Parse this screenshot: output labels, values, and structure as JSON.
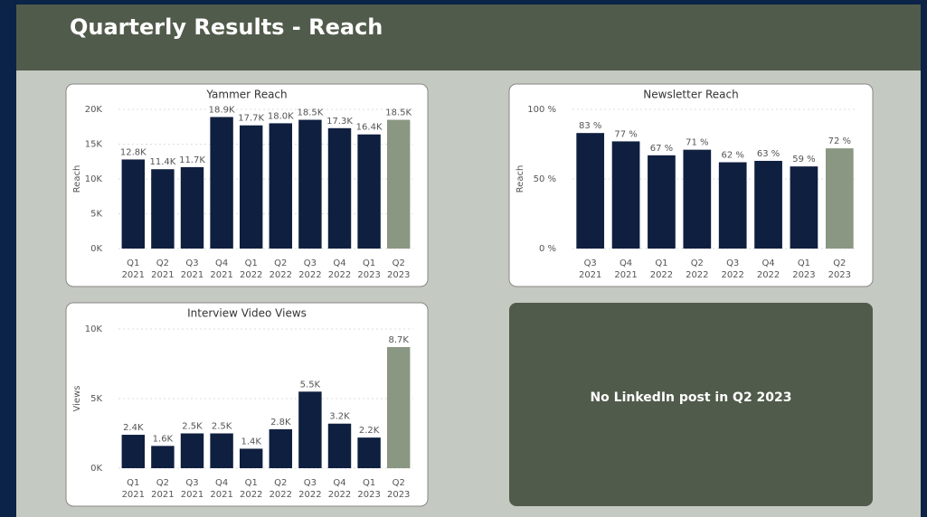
{
  "title": "Quarterly Results - Reach",
  "note": "No LinkedIn post in Q2 2023",
  "chart_data": [
    {
      "type": "bar",
      "title": "Yammer Reach",
      "ylabel": "Reach",
      "categories": [
        [
          "Q1",
          "2021"
        ],
        [
          "Q2",
          "2021"
        ],
        [
          "Q3",
          "2021"
        ],
        [
          "Q4",
          "2021"
        ],
        [
          "Q1",
          "2022"
        ],
        [
          "Q2",
          "2022"
        ],
        [
          "Q3",
          "2022"
        ],
        [
          "Q4",
          "2022"
        ],
        [
          "Q1",
          "2023"
        ],
        [
          "Q2",
          "2023"
        ]
      ],
      "values": [
        12800,
        11400,
        11700,
        18900,
        17700,
        18000,
        18500,
        17300,
        16400,
        18500
      ],
      "value_labels": [
        "12.8K",
        "11.4K",
        "11.7K",
        "18.9K",
        "17.7K",
        "18.0K",
        "18.5K",
        "17.3K",
        "16.4K",
        "18.5K"
      ],
      "colors": [
        "#0f1f3f",
        "#0f1f3f",
        "#0f1f3f",
        "#0f1f3f",
        "#0f1f3f",
        "#0f1f3f",
        "#0f1f3f",
        "#0f1f3f",
        "#0f1f3f",
        "#8a9782"
      ],
      "ylim": [
        0,
        20000
      ],
      "yticks": [
        {
          "value": 0,
          "label": "0K"
        },
        {
          "value": 5000,
          "label": "5K"
        },
        {
          "value": 10000,
          "label": "10K"
        },
        {
          "value": 15000,
          "label": "15K"
        },
        {
          "value": 20000,
          "label": "20K"
        }
      ],
      "grid": true
    },
    {
      "type": "bar",
      "title": "Newsletter Reach",
      "ylabel": "Reach",
      "categories": [
        [
          "Q3",
          "2021"
        ],
        [
          "Q4",
          "2021"
        ],
        [
          "Q1",
          "2022"
        ],
        [
          "Q2",
          "2022"
        ],
        [
          "Q3",
          "2022"
        ],
        [
          "Q4",
          "2022"
        ],
        [
          "Q1",
          "2023"
        ],
        [
          "Q2",
          "2023"
        ]
      ],
      "values": [
        83,
        77,
        67,
        71,
        62,
        63,
        59,
        72
      ],
      "value_labels": [
        "83 %",
        "77 %",
        "67 %",
        "71 %",
        "62 %",
        "63 %",
        "59 %",
        "72 %"
      ],
      "colors": [
        "#0f1f3f",
        "#0f1f3f",
        "#0f1f3f",
        "#0f1f3f",
        "#0f1f3f",
        "#0f1f3f",
        "#0f1f3f",
        "#8a9782"
      ],
      "ylim": [
        0,
        100
      ],
      "yticks": [
        {
          "value": 0,
          "label": "0 %"
        },
        {
          "value": 50,
          "label": "50 %"
        },
        {
          "value": 100,
          "label": "100 %"
        }
      ],
      "grid": true
    },
    {
      "type": "bar",
      "title": "Interview Video Views",
      "ylabel": "Views",
      "categories": [
        [
          "Q1",
          "2021"
        ],
        [
          "Q2",
          "2021"
        ],
        [
          "Q3",
          "2021"
        ],
        [
          "Q4",
          "2021"
        ],
        [
          "Q1",
          "2022"
        ],
        [
          "Q2",
          "2022"
        ],
        [
          "Q3",
          "2022"
        ],
        [
          "Q4",
          "2022"
        ],
        [
          "Q1",
          "2023"
        ],
        [
          "Q2",
          "2023"
        ]
      ],
      "values": [
        2400,
        1600,
        2500,
        2500,
        1400,
        2800,
        5500,
        3200,
        2200,
        8700
      ],
      "value_labels": [
        "2.4K",
        "1.6K",
        "2.5K",
        "2.5K",
        "1.4K",
        "2.8K",
        "5.5K",
        "3.2K",
        "2.2K",
        "8.7K"
      ],
      "colors": [
        "#0f1f3f",
        "#0f1f3f",
        "#0f1f3f",
        "#0f1f3f",
        "#0f1f3f",
        "#0f1f3f",
        "#0f1f3f",
        "#0f1f3f",
        "#0f1f3f",
        "#8a9782"
      ],
      "ylim": [
        0,
        10000
      ],
      "yticks": [
        {
          "value": 0,
          "label": "0K"
        },
        {
          "value": 5000,
          "label": "5K"
        },
        {
          "value": 10000,
          "label": "10K"
        }
      ],
      "grid": true
    }
  ]
}
